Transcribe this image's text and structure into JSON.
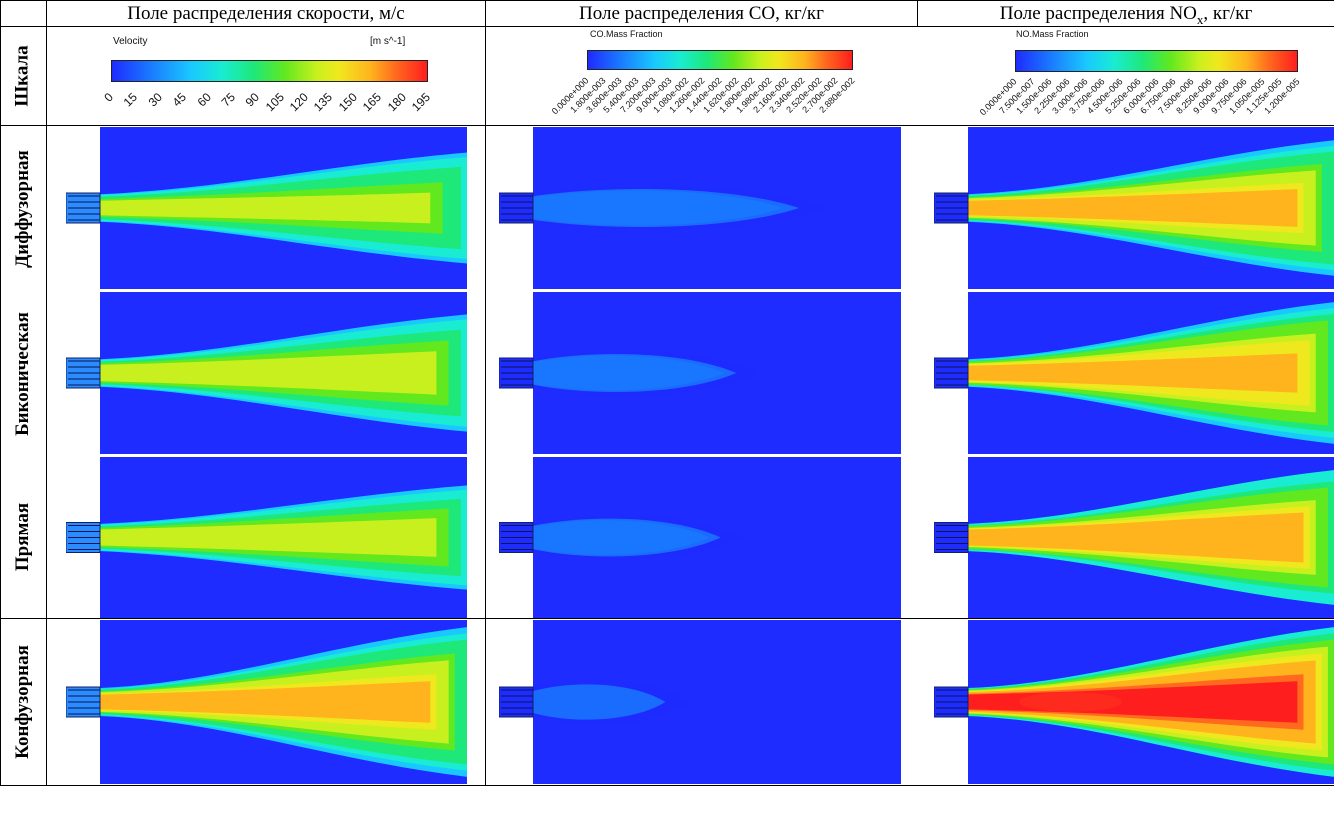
{
  "header": {
    "col1": "Поле распределения скорости, м/с",
    "col2": "Поле распределения CO, кг/кг",
    "col3_prefix": "Поле распределения NO",
    "col3_sub": "x",
    "col3_suffix": ", кг/кг"
  },
  "rows": {
    "scale": "Шкала",
    "diffuser": "Диффузорная",
    "biconic": "Биконическая",
    "straight": "Прямая",
    "confuser": "Конфузорная"
  },
  "scales": {
    "velocity": {
      "title": "Velocity",
      "units": "[m s^-1]",
      "ticks": [
        "0",
        "15",
        "30",
        "45",
        "60",
        "75",
        "90",
        "105",
        "120",
        "135",
        "150",
        "165",
        "180",
        "195"
      ]
    },
    "co": {
      "title": "CO.Mass Fraction",
      "ticks": [
        "0.000e+000",
        "1.800e-003",
        "3.600e-003",
        "5.400e-003",
        "7.200e-003",
        "9.000e-003",
        "1.080e-002",
        "1.260e-002",
        "1.440e-002",
        "1.620e-002",
        "1.800e-002",
        "1.980e-002",
        "2.160e-002",
        "2.340e-002",
        "2.520e-002",
        "2.700e-002",
        "2.880e-002"
      ]
    },
    "no": {
      "title": "NO.Mass Fraction",
      "ticks": [
        "0.000e+000",
        "7.500e-007",
        "1.500e-006",
        "2.250e-006",
        "3.000e-006",
        "3.750e-006",
        "4.500e-006",
        "5.250e-006",
        "6.000e-006",
        "6.750e-006",
        "7.500e-006",
        "8.250e-006",
        "9.000e-006",
        "9.750e-006",
        "1.050e-005",
        "1.125e-005",
        "1.200e-005"
      ]
    }
  },
  "colors": {
    "cfd_low": "#1a1aff",
    "cfd_mid": "#19e0d9",
    "cfd_high": "#ff1a00"
  },
  "fields": {
    "velocity": [
      {
        "row": "diffuser",
        "intensity": 0.42,
        "spread": 0.55
      },
      {
        "row": "biconic",
        "intensity": 0.45,
        "spread": 0.6
      },
      {
        "row": "straight",
        "intensity": 0.45,
        "spread": 0.5
      },
      {
        "row": "confuser",
        "intensity": 0.6,
        "spread": 0.85
      }
    ],
    "co": [
      {
        "row": "diffuser",
        "intensity": 0.14,
        "length": 0.85
      },
      {
        "row": "biconic",
        "intensity": 0.14,
        "length": 0.65
      },
      {
        "row": "straight",
        "intensity": 0.14,
        "length": 0.6
      },
      {
        "row": "confuser",
        "intensity": 0.12,
        "length": 0.45
      }
    ],
    "no": [
      {
        "row": "diffuser",
        "intensity": 0.6,
        "spread": 0.75
      },
      {
        "row": "biconic",
        "intensity": 0.65,
        "spread": 0.8
      },
      {
        "row": "straight",
        "intensity": 0.7,
        "spread": 0.75
      },
      {
        "row": "confuser",
        "intensity": 0.9,
        "spread": 0.85
      }
    ]
  }
}
